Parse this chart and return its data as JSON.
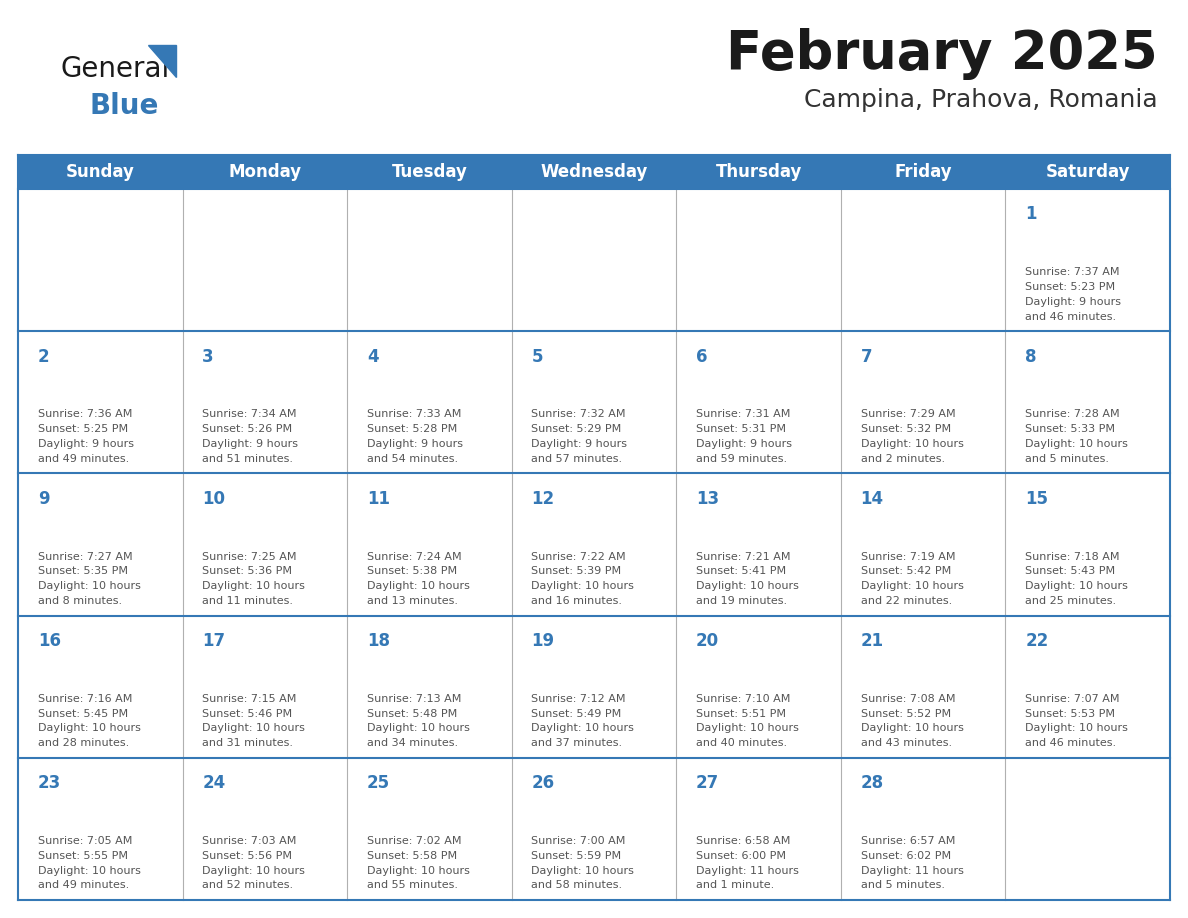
{
  "title": "February 2025",
  "subtitle": "Campina, Prahova, Romania",
  "header_bg_color": "#3578b5",
  "header_text_color": "#ffffff",
  "grid_line_color": "#3578b5",
  "inner_grid_color": "#b0b0b0",
  "title_color": "#1a1a1a",
  "subtitle_color": "#333333",
  "day_number_color": "#3578b5",
  "cell_text_color": "#555555",
  "logo_general_color": "#1a1a1a",
  "logo_blue_color": "#3578b5",
  "day_names": [
    "Sunday",
    "Monday",
    "Tuesday",
    "Wednesday",
    "Thursday",
    "Friday",
    "Saturday"
  ],
  "weeks": [
    [
      {
        "day": "",
        "info": ""
      },
      {
        "day": "",
        "info": ""
      },
      {
        "day": "",
        "info": ""
      },
      {
        "day": "",
        "info": ""
      },
      {
        "day": "",
        "info": ""
      },
      {
        "day": "",
        "info": ""
      },
      {
        "day": "1",
        "info": "Sunrise: 7:37 AM\nSunset: 5:23 PM\nDaylight: 9 hours\nand 46 minutes."
      }
    ],
    [
      {
        "day": "2",
        "info": "Sunrise: 7:36 AM\nSunset: 5:25 PM\nDaylight: 9 hours\nand 49 minutes."
      },
      {
        "day": "3",
        "info": "Sunrise: 7:34 AM\nSunset: 5:26 PM\nDaylight: 9 hours\nand 51 minutes."
      },
      {
        "day": "4",
        "info": "Sunrise: 7:33 AM\nSunset: 5:28 PM\nDaylight: 9 hours\nand 54 minutes."
      },
      {
        "day": "5",
        "info": "Sunrise: 7:32 AM\nSunset: 5:29 PM\nDaylight: 9 hours\nand 57 minutes."
      },
      {
        "day": "6",
        "info": "Sunrise: 7:31 AM\nSunset: 5:31 PM\nDaylight: 9 hours\nand 59 minutes."
      },
      {
        "day": "7",
        "info": "Sunrise: 7:29 AM\nSunset: 5:32 PM\nDaylight: 10 hours\nand 2 minutes."
      },
      {
        "day": "8",
        "info": "Sunrise: 7:28 AM\nSunset: 5:33 PM\nDaylight: 10 hours\nand 5 minutes."
      }
    ],
    [
      {
        "day": "9",
        "info": "Sunrise: 7:27 AM\nSunset: 5:35 PM\nDaylight: 10 hours\nand 8 minutes."
      },
      {
        "day": "10",
        "info": "Sunrise: 7:25 AM\nSunset: 5:36 PM\nDaylight: 10 hours\nand 11 minutes."
      },
      {
        "day": "11",
        "info": "Sunrise: 7:24 AM\nSunset: 5:38 PM\nDaylight: 10 hours\nand 13 minutes."
      },
      {
        "day": "12",
        "info": "Sunrise: 7:22 AM\nSunset: 5:39 PM\nDaylight: 10 hours\nand 16 minutes."
      },
      {
        "day": "13",
        "info": "Sunrise: 7:21 AM\nSunset: 5:41 PM\nDaylight: 10 hours\nand 19 minutes."
      },
      {
        "day": "14",
        "info": "Sunrise: 7:19 AM\nSunset: 5:42 PM\nDaylight: 10 hours\nand 22 minutes."
      },
      {
        "day": "15",
        "info": "Sunrise: 7:18 AM\nSunset: 5:43 PM\nDaylight: 10 hours\nand 25 minutes."
      }
    ],
    [
      {
        "day": "16",
        "info": "Sunrise: 7:16 AM\nSunset: 5:45 PM\nDaylight: 10 hours\nand 28 minutes."
      },
      {
        "day": "17",
        "info": "Sunrise: 7:15 AM\nSunset: 5:46 PM\nDaylight: 10 hours\nand 31 minutes."
      },
      {
        "day": "18",
        "info": "Sunrise: 7:13 AM\nSunset: 5:48 PM\nDaylight: 10 hours\nand 34 minutes."
      },
      {
        "day": "19",
        "info": "Sunrise: 7:12 AM\nSunset: 5:49 PM\nDaylight: 10 hours\nand 37 minutes."
      },
      {
        "day": "20",
        "info": "Sunrise: 7:10 AM\nSunset: 5:51 PM\nDaylight: 10 hours\nand 40 minutes."
      },
      {
        "day": "21",
        "info": "Sunrise: 7:08 AM\nSunset: 5:52 PM\nDaylight: 10 hours\nand 43 minutes."
      },
      {
        "day": "22",
        "info": "Sunrise: 7:07 AM\nSunset: 5:53 PM\nDaylight: 10 hours\nand 46 minutes."
      }
    ],
    [
      {
        "day": "23",
        "info": "Sunrise: 7:05 AM\nSunset: 5:55 PM\nDaylight: 10 hours\nand 49 minutes."
      },
      {
        "day": "24",
        "info": "Sunrise: 7:03 AM\nSunset: 5:56 PM\nDaylight: 10 hours\nand 52 minutes."
      },
      {
        "day": "25",
        "info": "Sunrise: 7:02 AM\nSunset: 5:58 PM\nDaylight: 10 hours\nand 55 minutes."
      },
      {
        "day": "26",
        "info": "Sunrise: 7:00 AM\nSunset: 5:59 PM\nDaylight: 10 hours\nand 58 minutes."
      },
      {
        "day": "27",
        "info": "Sunrise: 6:58 AM\nSunset: 6:00 PM\nDaylight: 11 hours\nand 1 minute."
      },
      {
        "day": "28",
        "info": "Sunrise: 6:57 AM\nSunset: 6:02 PM\nDaylight: 11 hours\nand 5 minutes."
      },
      {
        "day": "",
        "info": ""
      }
    ]
  ]
}
